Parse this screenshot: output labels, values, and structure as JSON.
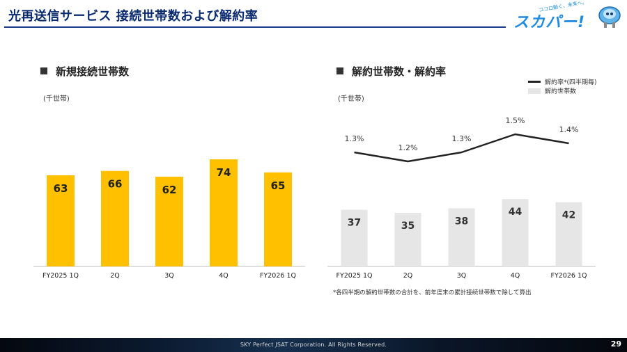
{
  "header": {
    "title": "光再送信サービス 接続世帯数および解約率",
    "logo_tagline": "ココロ動く、未来へ。",
    "logo_text": "スカパー!"
  },
  "left_panel": {
    "heading": "新規接続世帯数",
    "unit": "(千世帯)"
  },
  "right_panel": {
    "heading": "解約世帯数・解約率",
    "unit": "(千世帯)",
    "legend_line": "解約率*(四半期毎)",
    "legend_bar": "解約世帯数",
    "note": "*各四半期の解約世帯数の合計を、前年度末の累計接続世帯数で除して算出"
  },
  "chart_data": [
    {
      "type": "bar",
      "categories": [
        "FY2025 1Q",
        "2Q",
        "3Q",
        "4Q",
        "FY2026 1Q"
      ],
      "values": [
        63,
        66,
        62,
        74,
        65
      ],
      "bar_color": "#ffc000",
      "ylabel": "(千世帯)"
    },
    {
      "type": "bar",
      "categories": [
        "FY2025 1Q",
        "2Q",
        "3Q",
        "4Q",
        "FY2026 1Q"
      ],
      "values": [
        37,
        35,
        38,
        44,
        42
      ],
      "bar_color": "#e6e6e6",
      "ylabel": "(千世帯)",
      "series_line": {
        "name": "解約率*(四半期毎)",
        "values": [
          1.3,
          1.2,
          1.3,
          1.5,
          1.4
        ],
        "labels": [
          "1.3%",
          "1.2%",
          "1.3%",
          "1.5%",
          "1.4%"
        ],
        "color": "#222222"
      }
    }
  ],
  "footer": {
    "copyright": "SKY Perfect JSAT Corporation. All Rights Reserved.",
    "page": "29"
  }
}
